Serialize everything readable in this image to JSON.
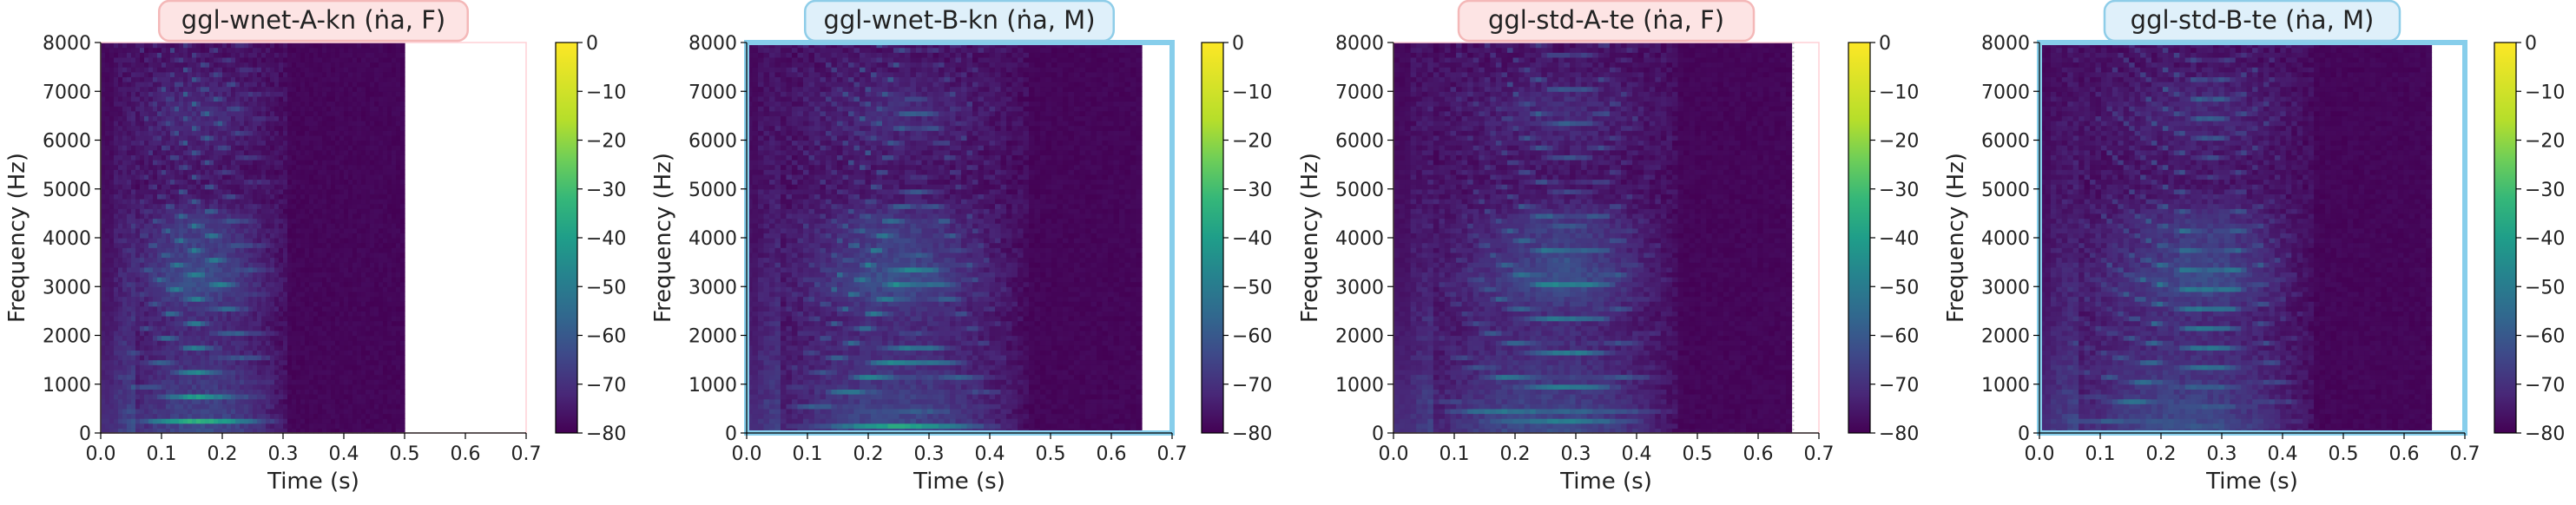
{
  "chart_data": [
    {
      "type": "heatmap",
      "title": "ggl-wnet-A-kn (ṅa, F)",
      "title_box_color": "#fde4e4",
      "title_border_color": "#f4b8b8",
      "frame_color": "#ffd0d6",
      "xlabel": "Time (s)",
      "ylabel": "Frequency (Hz)",
      "xlim": [
        0.0,
        0.7
      ],
      "ylim": [
        0,
        8000
      ],
      "xticks": [
        "0.0",
        "0.1",
        "0.2",
        "0.3",
        "0.4",
        "0.5",
        "0.6",
        "0.7"
      ],
      "yticks": [
        "0",
        "1000",
        "2000",
        "3000",
        "4000",
        "5000",
        "6000",
        "7000",
        "8000"
      ],
      "duration": 0.5,
      "fundamental_hz": 230,
      "voiced_range": [
        0.02,
        0.31
      ],
      "peak_time": 0.15,
      "colorbar": {
        "range": [
          -80,
          0
        ],
        "ticks": [
          "0",
          "−10",
          "−20",
          "−30",
          "−40",
          "−50",
          "−60",
          "−70",
          "−80"
        ]
      }
    },
    {
      "type": "heatmap",
      "title": "ggl-wnet-B-kn (ṅa, M)",
      "title_box_color": "#dff0fa",
      "title_border_color": "#8ecde8",
      "frame_color": "#87ceeb",
      "xlabel": "Time (s)",
      "ylabel": "Frequency (Hz)",
      "xlim": [
        0.0,
        0.7
      ],
      "ylim": [
        0,
        8000
      ],
      "xticks": [
        "0.0",
        "0.1",
        "0.2",
        "0.3",
        "0.4",
        "0.5",
        "0.6",
        "0.7"
      ],
      "yticks": [
        "0",
        "1000",
        "2000",
        "3000",
        "4000",
        "5000",
        "6000",
        "7000",
        "8000"
      ],
      "duration": 0.65,
      "fundamental_hz": 130,
      "voiced_range": [
        0.02,
        0.46
      ],
      "peak_time": 0.25,
      "colorbar": {
        "range": [
          -80,
          0
        ],
        "ticks": [
          "0",
          "−10",
          "−20",
          "−30",
          "−40",
          "−50",
          "−60",
          "−70",
          "−80"
        ]
      }
    },
    {
      "type": "heatmap",
      "title": "ggl-std-A-te (ṅa, F)",
      "title_box_color": "#fde4e4",
      "title_border_color": "#f4b8b8",
      "frame_color": "#ffd0d6",
      "xlabel": "Time (s)",
      "ylabel": "Frequency (Hz)",
      "xlim": [
        0.0,
        0.7
      ],
      "ylim": [
        0,
        8000
      ],
      "xticks": [
        "0.0",
        "0.1",
        "0.2",
        "0.3",
        "0.4",
        "0.5",
        "0.6",
        "0.7"
      ],
      "yticks": [
        "0",
        "1000",
        "2000",
        "3000",
        "4000",
        "5000",
        "6000",
        "7000",
        "8000"
      ],
      "duration": 0.655,
      "fundamental_hz": 210,
      "voiced_range": [
        0.03,
        0.47
      ],
      "peak_time": 0.3,
      "colorbar": {
        "range": [
          -80,
          0
        ],
        "ticks": [
          "0",
          "−10",
          "−20",
          "−30",
          "−40",
          "−50",
          "−60",
          "−70",
          "−80"
        ]
      }
    },
    {
      "type": "heatmap",
      "title": "ggl-std-B-te (ṅa, M)",
      "title_box_color": "#dff0fa",
      "title_border_color": "#8ecde8",
      "frame_color": "#87ceeb",
      "xlabel": "Time (s)",
      "ylabel": "Frequency (Hz)",
      "xlim": [
        0.0,
        0.7
      ],
      "ylim": [
        0,
        8000
      ],
      "xticks": [
        "0.0",
        "0.1",
        "0.2",
        "0.3",
        "0.4",
        "0.5",
        "0.6",
        "0.7"
      ],
      "yticks": [
        "0",
        "1000",
        "2000",
        "3000",
        "4000",
        "5000",
        "6000",
        "7000",
        "8000"
      ],
      "duration": 0.645,
      "fundamental_hz": 120,
      "voiced_range": [
        0.02,
        0.45
      ],
      "peak_time": 0.3,
      "colorbar": {
        "range": [
          -80,
          0
        ],
        "ticks": [
          "0",
          "−10",
          "−20",
          "−30",
          "−40",
          "−50",
          "−60",
          "−70",
          "−80"
        ]
      }
    }
  ]
}
